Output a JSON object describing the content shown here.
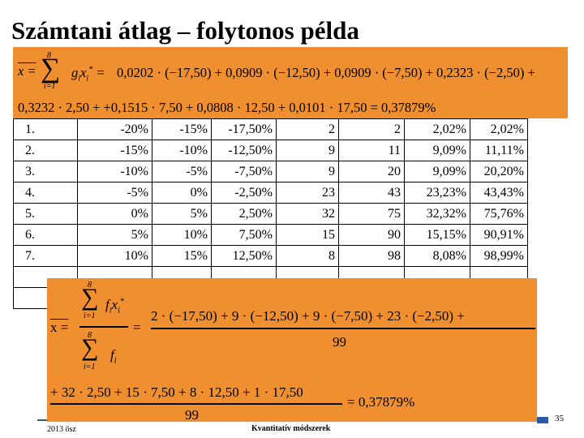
{
  "title": "Számtani átlag – folytonos példa",
  "formula1": {
    "lhs": "x = ",
    "sum_top": "8",
    "sum_bottom": "i=1",
    "term": "g",
    "line1": "0,0202 · (−17,50) + 0,0909 · (−12,50) + 0,0909 · (−7,50) + 0,2323 · (−2,50) +",
    "line2": "0,3232 · 2,50 + +0,1515 · 7,50 + 0,0808 · 12,50 + 0,0101 · 17,50 = 0,37879%"
  },
  "table": {
    "rows": [
      [
        "1.",
        "-20%",
        "-15%",
        "-17,50%",
        "2",
        "2",
        "2,02%",
        "2,02%"
      ],
      [
        "2.",
        "-15%",
        "-10%",
        "-12,50%",
        "9",
        "11",
        "9,09%",
        "11,11%"
      ],
      [
        "3.",
        "-10%",
        "-5%",
        "-7,50%",
        "9",
        "20",
        "9,09%",
        "20,20%"
      ],
      [
        "4.",
        "-5%",
        "0%",
        "-2,50%",
        "23",
        "43",
        "23,23%",
        "43,43%"
      ],
      [
        "5.",
        "0%",
        "5%",
        "2,50%",
        "32",
        "75",
        "32,32%",
        "75,76%"
      ],
      [
        "6.",
        "5%",
        "10%",
        "7,50%",
        "15",
        "90",
        "15,15%",
        "90,91%"
      ],
      [
        "7.",
        "10%",
        "15%",
        "12,50%",
        "8",
        "98",
        "8,08%",
        "98,99%"
      ],
      [
        "",
        "",
        "",
        "",
        "",
        "",
        "",
        ""
      ],
      [
        "",
        "",
        "",
        "",
        "",
        "",
        "",
        ""
      ]
    ]
  },
  "formula2": {
    "lhs": "x = ",
    "sum_top": "8",
    "sum_bottom": "i=1",
    "num_term": "f",
    "den_term": "f",
    "numerator": "2 · (−17,50) + 9 · (−12,50) + 9 · (−7,50) + 23 · (−2,50) +",
    "denominator": "99",
    "num2": "+ 32 · 2,50 + 15 · 7,50 + 8 · 12,50 + 1 · 17,50",
    "den2": "99",
    "result": "= 0,37879%"
  },
  "footer": {
    "left": "2013 ősz",
    "middle": "Kvantitatív módszerek",
    "page": "35"
  }
}
